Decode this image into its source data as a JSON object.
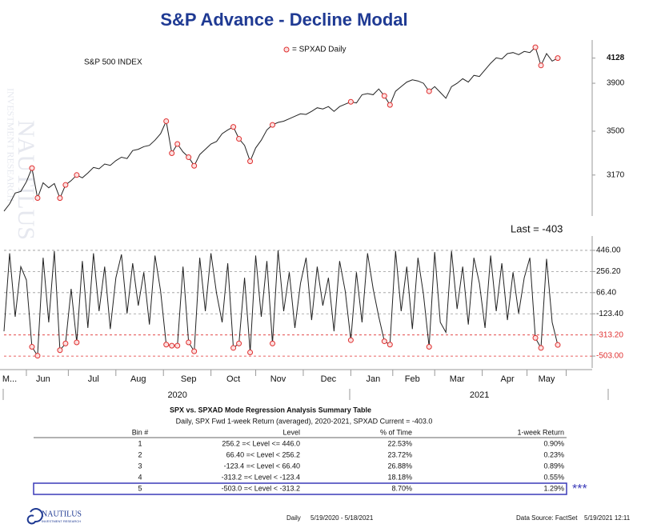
{
  "title": "S&P Advance - Decline Modal",
  "watermark": [
    "NAUTILUS",
    "INVESTMENT RESEARCH"
  ],
  "x_axis": {
    "categories": [
      null,
      "M...",
      null,
      null,
      null,
      null,
      null,
      "Jun",
      null,
      null,
      null,
      null,
      null,
      null,
      null,
      null,
      "Jul",
      null,
      null,
      null,
      null,
      null,
      null,
      null,
      "Aug",
      null,
      null,
      null,
      null,
      null,
      null,
      null,
      null,
      "Sep",
      null,
      null,
      null,
      null,
      null,
      null,
      null,
      "Oct",
      null,
      null,
      null,
      null,
      null,
      null,
      null,
      "Nov",
      null,
      null,
      null,
      null,
      null,
      null,
      null,
      null,
      "Dec",
      null,
      null,
      null,
      null,
      null,
      null,
      null,
      "Jan",
      null,
      null,
      null,
      null,
      null,
      null,
      "Feb",
      null,
      null,
      null,
      null,
      null,
      null,
      null,
      "Mar",
      null,
      null,
      null,
      null,
      null,
      null,
      null,
      null,
      "Apr",
      null,
      null,
      null,
      null,
      null,
      null,
      "May",
      null,
      null
    ],
    "years": [
      null,
      null,
      null,
      null,
      null,
      null,
      null,
      null,
      null,
      null,
      null,
      null,
      null,
      null,
      null,
      null,
      null,
      null,
      null,
      null,
      null,
      null,
      null,
      null,
      null,
      null,
      null,
      null,
      null,
      null,
      null,
      "2020",
      null,
      null,
      null,
      null,
      null,
      null,
      null,
      null,
      null,
      null,
      null,
      null,
      null,
      null,
      null,
      null,
      null,
      null,
      null,
      null,
      null,
      null,
      null,
      null,
      null,
      null,
      null,
      null,
      null,
      null,
      null,
      null,
      null,
      null,
      null,
      null,
      null,
      null,
      null,
      null,
      null,
      null,
      null,
      null,
      null,
      null,
      null,
      null,
      null,
      null,
      null,
      null,
      null,
      "2021",
      null,
      null,
      null,
      null,
      null,
      null,
      null,
      null,
      null,
      null,
      null,
      null,
      null,
      null
    ]
  },
  "chart_data": [
    {
      "type": "line",
      "label": "S&P 500 INDEX",
      "log_scale": true,
      "ylim": [
        2890,
        4300
      ],
      "yticks": [
        3170,
        3500,
        3900
      ],
      "last_value": 4128,
      "series": [
        {
          "color": "#222222",
          "values": [
            2922,
            2970,
            3044,
            3055,
            3122,
            3220,
            3010,
            3115,
            3080,
            3110,
            3009,
            3100,
            3130,
            3170,
            3150,
            3185,
            3225,
            3215,
            3250,
            3240,
            3275,
            3300,
            3290,
            3350,
            3360,
            3380,
            3390,
            3430,
            3480,
            3580,
            3330,
            3400,
            3340,
            3300,
            3237,
            3320,
            3360,
            3400,
            3420,
            3480,
            3510,
            3534,
            3440,
            3390,
            3270,
            3370,
            3430,
            3510,
            3550,
            3570,
            3580,
            3600,
            3620,
            3640,
            3635,
            3660,
            3690,
            3680,
            3700,
            3660,
            3700,
            3720,
            3740,
            3730,
            3800,
            3810,
            3800,
            3850,
            3790,
            3714,
            3830,
            3870,
            3910,
            3930,
            3920,
            3900,
            3830,
            3870,
            3820,
            3770,
            3870,
            3900,
            3940,
            3910,
            3970,
            3960,
            4020,
            4080,
            4130,
            4120,
            4170,
            4180,
            4160,
            4190,
            4180,
            4230,
            4060,
            4170,
            4100,
            4128
          ]
        },
        {
          "name": "= SPXAD Daily",
          "color": "#e03030",
          "marker": "circle",
          "values": [
            null,
            null,
            null,
            null,
            null,
            3220,
            3010,
            null,
            null,
            null,
            3009,
            3100,
            null,
            3170,
            null,
            null,
            null,
            null,
            null,
            null,
            null,
            null,
            null,
            null,
            null,
            null,
            null,
            null,
            null,
            3580,
            3330,
            3400,
            null,
            3300,
            3237,
            null,
            null,
            null,
            null,
            null,
            null,
            3534,
            3440,
            null,
            3270,
            null,
            null,
            null,
            3550,
            null,
            null,
            null,
            null,
            null,
            null,
            null,
            null,
            null,
            null,
            null,
            null,
            null,
            3740,
            null,
            null,
            null,
            null,
            null,
            3790,
            3714,
            null,
            null,
            null,
            null,
            null,
            null,
            3830,
            null,
            null,
            null,
            null,
            null,
            null,
            null,
            null,
            null,
            null,
            null,
            null,
            null,
            null,
            null,
            null,
            null,
            null,
            4230,
            4060,
            null,
            null,
            4128
          ]
        }
      ]
    },
    {
      "type": "line",
      "annotation": "Last = -403",
      "ylim": [
        -610,
        575
      ],
      "yticks": [
        {
          "value": 446,
          "label": "446.00"
        },
        {
          "value": 256.2,
          "label": "256.20"
        },
        {
          "value": 66.4,
          "label": "66.40"
        },
        {
          "value": -123.4,
          "label": "-123.40"
        },
        {
          "value": -313.2,
          "label": "-313.20"
        },
        {
          "value": -503,
          "label": "-503.00"
        }
      ],
      "grid": true,
      "grid_colors": [
        "#999999",
        "#999999",
        "#999999",
        "#999999",
        "#e03030",
        "#e03030"
      ],
      "series": [
        {
          "color": "#222222",
          "values": [
            -280,
            420,
            -150,
            300,
            180,
            -420,
            -500,
            380,
            -200,
            440,
            -450,
            -390,
            100,
            -380,
            350,
            -250,
            420,
            -100,
            300,
            -260,
            200,
            410,
            -120,
            330,
            -50,
            250,
            -220,
            400,
            80,
            -400,
            -410,
            -410,
            300,
            -380,
            -460,
            380,
            -100,
            420,
            60,
            -200,
            330,
            -430,
            -390,
            200,
            -470,
            400,
            -150,
            350,
            -390,
            446,
            -100,
            250,
            -250,
            150,
            380,
            -180,
            300,
            -50,
            200,
            -280,
            350,
            80,
            -360,
            250,
            -200,
            420,
            100,
            -150,
            -370,
            -400,
            440,
            -100,
            300,
            -260,
            380,
            50,
            -420,
            430,
            -200,
            -290,
            440,
            -80,
            300,
            -220,
            380,
            150,
            -250,
            400,
            -100,
            330,
            -180,
            250,
            -120,
            200,
            380,
            -340,
            -430,
            370,
            -200,
            -403
          ]
        },
        {
          "color": "#e03030",
          "marker": "circle",
          "values": [
            null,
            null,
            null,
            null,
            null,
            -420,
            -500,
            null,
            null,
            null,
            -450,
            -390,
            null,
            -380,
            null,
            null,
            null,
            null,
            null,
            null,
            null,
            null,
            null,
            null,
            null,
            null,
            null,
            null,
            null,
            -400,
            -410,
            -410,
            null,
            -380,
            -460,
            null,
            null,
            null,
            null,
            null,
            null,
            -430,
            -390,
            null,
            -470,
            null,
            null,
            null,
            -390,
            null,
            null,
            null,
            null,
            null,
            null,
            null,
            null,
            null,
            null,
            null,
            null,
            null,
            -360,
            null,
            null,
            null,
            null,
            null,
            -370,
            -400,
            null,
            null,
            null,
            null,
            null,
            null,
            -420,
            null,
            null,
            null,
            null,
            null,
            null,
            null,
            null,
            null,
            null,
            null,
            null,
            null,
            null,
            null,
            null,
            null,
            null,
            -340,
            -430,
            null,
            null,
            -403
          ]
        }
      ]
    }
  ],
  "table": {
    "title": "SPX vs. SPXAD Mode Regression Analysis Summary Table",
    "subtitle": "Daily, SPX Fwd 1-week Return (averaged), 2020-2021, SPXAD Current = -403.0",
    "headers": [
      "Bin #",
      "Level",
      "% of Time",
      "1-week Return"
    ],
    "rows": [
      [
        "1",
        "256.2 =< Level <= 446.0",
        "22.53%",
        "0.90%"
      ],
      [
        "2",
        "66.40 =< Level < 256.2",
        "23.72%",
        "0.23%"
      ],
      [
        "3",
        "-123.4 =< Level < 66.40",
        "26.88%",
        "0.89%"
      ],
      [
        "4",
        "-313.2 =< Level < -123.4",
        "18.18%",
        "0.55%"
      ],
      [
        "5",
        "-503.0 =< Level < -313.2",
        "8.70%",
        "1.29%"
      ]
    ],
    "highlight_row": 4,
    "highlight_mark": "***"
  },
  "footer": {
    "logo": "NAUTILUS",
    "logo_sub": "INVESTMENT RESEARCH",
    "frequency": "Daily",
    "range": "5/19/2020 - 5/18/2021",
    "source": "Data Source: FactSet",
    "timestamp": "5/19/2021 12:11"
  }
}
